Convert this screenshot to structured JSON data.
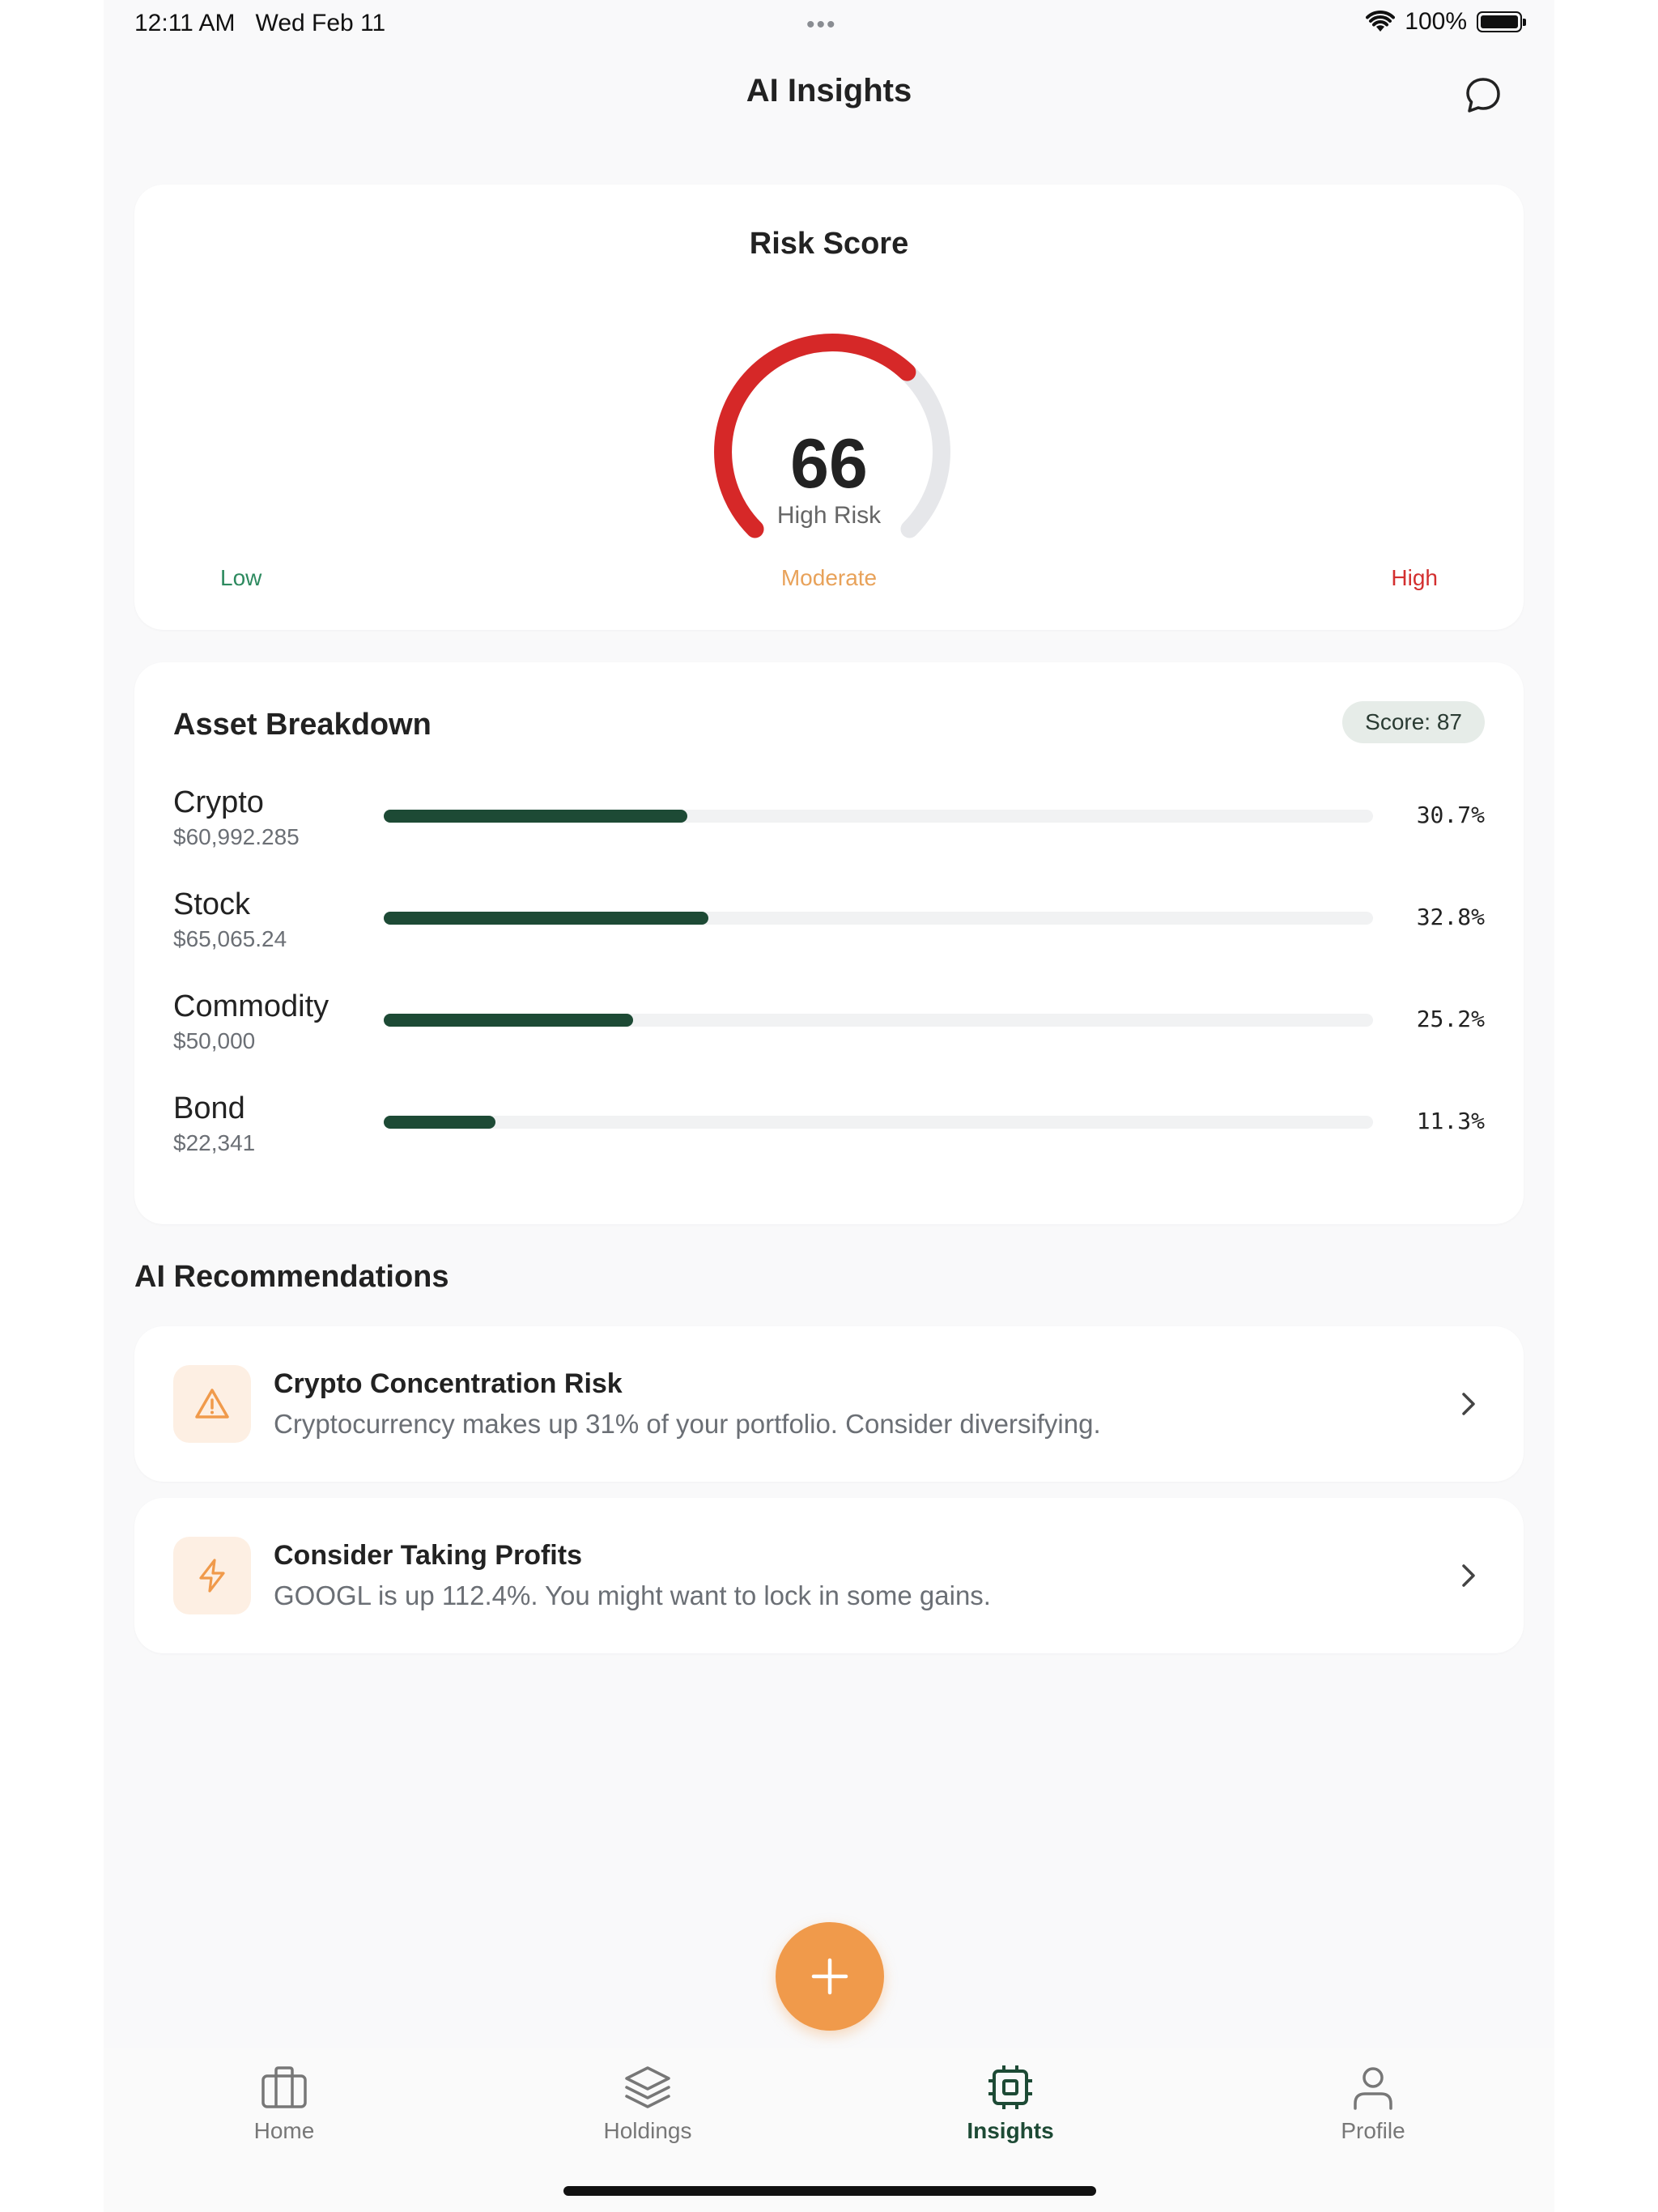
{
  "status_bar": {
    "time": "12:11 AM",
    "date": "Wed Feb 11",
    "battery": "100%",
    "dots": "•••"
  },
  "header": {
    "title": "AI Insights",
    "chat_icon": "chat-bubble-icon"
  },
  "risk_score": {
    "title": "Risk Score",
    "value": "66",
    "value_num": 66,
    "level": "High Risk",
    "gauge_color": "#d62828",
    "scale": {
      "low": "Low",
      "moderate": "Moderate",
      "high": "High"
    }
  },
  "asset_breakdown": {
    "title": "Asset Breakdown",
    "score_badge": "Score: 87",
    "items": [
      {
        "name": "Crypto",
        "value": "$60,992.285",
        "percent": "30.7%",
        "fraction": 0.307
      },
      {
        "name": "Stock",
        "value": "$65,065.24",
        "percent": "32.8%",
        "fraction": 0.328
      },
      {
        "name": "Commodity",
        "value": "$50,000",
        "percent": "25.2%",
        "fraction": 0.252
      },
      {
        "name": "Bond",
        "value": "$22,341",
        "percent": "11.3%",
        "fraction": 0.113
      }
    ]
  },
  "recommendations": {
    "title": "AI Recommendations",
    "items": [
      {
        "icon": "warning-icon",
        "title": "Crypto Concentration Risk",
        "description": "Cryptocurrency makes up 31% of your portfolio. Consider diversifying."
      },
      {
        "icon": "lightning-icon",
        "title": "Consider Taking Profits",
        "description": "GOOGL is up 112.4%. You might want to lock in some gains."
      }
    ]
  },
  "fab": {
    "icon": "plus-icon"
  },
  "tabbar": {
    "tabs": [
      {
        "label": "Home",
        "icon": "briefcase-icon"
      },
      {
        "label": "Holdings",
        "icon": "layers-icon"
      },
      {
        "label": "Insights",
        "icon": "chip-icon",
        "active": true
      },
      {
        "label": "Profile",
        "icon": "user-icon"
      }
    ]
  }
}
